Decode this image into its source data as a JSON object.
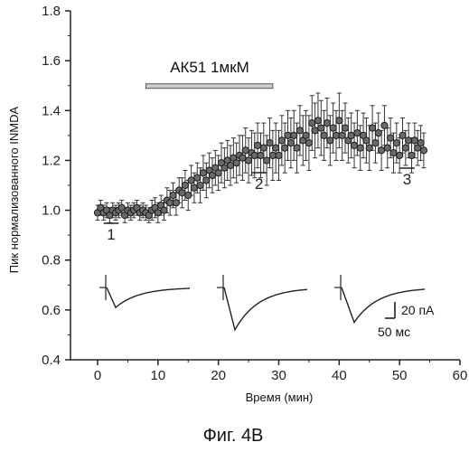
{
  "chart_data": {
    "type": "scatter",
    "xlabel": "Время (мин)",
    "ylabel": "Пик нормализованного INMDA",
    "xlim": [
      -5,
      60
    ],
    "ylim": [
      0.4,
      1.8
    ],
    "x_ticks": [
      "0",
      "10",
      "20",
      "30",
      "40",
      "50",
      "60"
    ],
    "y_ticks": [
      "0.4",
      "0.6",
      "0.8",
      "1.0",
      "1.2",
      "1.4",
      "1.6",
      "1.8"
    ],
    "caption": "Фиг. 4В",
    "series": [
      {
        "x": [
          0,
          0.5,
          1,
          1.5,
          2,
          2.5,
          3,
          3.5,
          4,
          4.5,
          5,
          5.5,
          6,
          6.5,
          7,
          7.5,
          8,
          8.5,
          9,
          9.5,
          10,
          10.5,
          11,
          11.5,
          12,
          12.5,
          13,
          13.5,
          14,
          14.5,
          15,
          15.5,
          16,
          16.5,
          17,
          17.5,
          18,
          18.5,
          19,
          19.5,
          20,
          20.5,
          21,
          21.5,
          22,
          22.5,
          23,
          23.5,
          24,
          24.5,
          25,
          25.5,
          26,
          26.5,
          27,
          27.5,
          28,
          28.5,
          29,
          29.5,
          30,
          30.5,
          31,
          31.5,
          32,
          32.5,
          33,
          33.5,
          34,
          34.5,
          35,
          35.5,
          36,
          36.5,
          37,
          37.5,
          38,
          38.5,
          39,
          39.5,
          40,
          40.5,
          41,
          41.5,
          42,
          42.5,
          43,
          43.5,
          44,
          44.5,
          45,
          45.5,
          46,
          46.5,
          47,
          47.5,
          48,
          48.5,
          49,
          49.5,
          50,
          50.5,
          51,
          51.5,
          52,
          52.5,
          53,
          53.5,
          54
        ],
        "y": [
          0.99,
          1.01,
          0.99,
          1.0,
          0.98,
          1.0,
          0.99,
          1.0,
          1.01,
          0.98,
          1.0,
          0.99,
          1.0,
          1.01,
          0.99,
          1.0,
          0.99,
          0.98,
          1.0,
          1.01,
          0.99,
          1.02,
          1.0,
          1.04,
          1.03,
          1.06,
          1.03,
          1.08,
          1.07,
          1.1,
          1.06,
          1.12,
          1.09,
          1.13,
          1.1,
          1.15,
          1.12,
          1.16,
          1.14,
          1.17,
          1.15,
          1.19,
          1.17,
          1.2,
          1.18,
          1.21,
          1.19,
          1.22,
          1.21,
          1.24,
          1.2,
          1.23,
          1.22,
          1.26,
          1.22,
          1.25,
          1.2,
          1.27,
          1.22,
          1.25,
          1.22,
          1.28,
          1.25,
          1.3,
          1.27,
          1.3,
          1.25,
          1.32,
          1.28,
          1.3,
          1.27,
          1.35,
          1.32,
          1.36,
          1.33,
          1.3,
          1.35,
          1.28,
          1.33,
          1.3,
          1.36,
          1.3,
          1.33,
          1.28,
          1.3,
          1.26,
          1.31,
          1.25,
          1.3,
          1.28,
          1.25,
          1.33,
          1.27,
          1.31,
          1.24,
          1.34,
          1.25,
          1.29,
          1.23,
          1.27,
          1.22,
          1.3,
          1.25,
          1.28,
          1.22,
          1.28,
          1.25,
          1.27,
          1.24
        ],
        "error": [
          0.03,
          0.03,
          0.03,
          0.03,
          0.03,
          0.03,
          0.03,
          0.03,
          0.03,
          0.03,
          0.03,
          0.03,
          0.03,
          0.03,
          0.03,
          0.03,
          0.03,
          0.03,
          0.04,
          0.04,
          0.04,
          0.04,
          0.04,
          0.05,
          0.05,
          0.05,
          0.05,
          0.05,
          0.06,
          0.06,
          0.06,
          0.06,
          0.06,
          0.06,
          0.07,
          0.07,
          0.07,
          0.07,
          0.07,
          0.07,
          0.07,
          0.08,
          0.08,
          0.08,
          0.08,
          0.08,
          0.08,
          0.08,
          0.09,
          0.09,
          0.09,
          0.09,
          0.09,
          0.09,
          0.09,
          0.1,
          0.1,
          0.1,
          0.1,
          0.1,
          0.1,
          0.1,
          0.1,
          0.1,
          0.1,
          0.1,
          0.1,
          0.1,
          0.1,
          0.1,
          0.11,
          0.11,
          0.11,
          0.11,
          0.11,
          0.1,
          0.1,
          0.1,
          0.1,
          0.1,
          0.11,
          0.1,
          0.1,
          0.09,
          0.09,
          0.09,
          0.09,
          0.09,
          0.09,
          0.09,
          0.09,
          0.09,
          0.08,
          0.08,
          0.08,
          0.08,
          0.08,
          0.08,
          0.08,
          0.08,
          0.07,
          0.07,
          0.07,
          0.07,
          0.07,
          0.07,
          0.07,
          0.07,
          0.07
        ]
      }
    ],
    "drug_bar": {
      "label": "АК51 1мкМ",
      "x_start": 8,
      "x_end": 29,
      "y": 1.5
    },
    "periods": [
      {
        "label": "1",
        "x_start": 1,
        "x_end": 3.5
      },
      {
        "label": "2",
        "x_start": 25.5,
        "x_end": 28
      },
      {
        "label": "3",
        "x_start": 50,
        "x_end": 52.5
      }
    ],
    "traces": [
      {
        "label": "1",
        "peak_y": 0.61
      },
      {
        "label": "2",
        "peak_y": 0.52
      },
      {
        "label": "3",
        "peak_y": 0.55
      }
    ],
    "scale_bar": {
      "amplitude_label": "20 пА",
      "time_label": "50 мс"
    }
  }
}
